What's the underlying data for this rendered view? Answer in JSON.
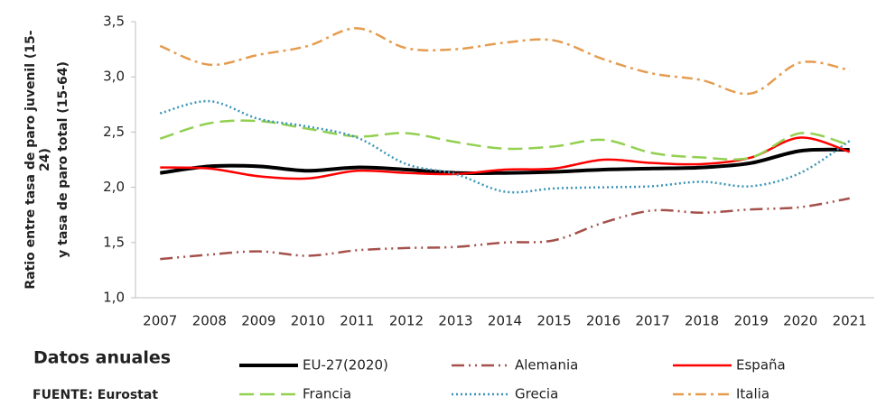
{
  "chart_data": {
    "type": "line",
    "y_label": [
      "Ratio entre tasa de paro juvenil (15-",
      "24)",
      "y tasa de paro total (15-64)"
    ],
    "notes": [
      "Datos anuales",
      "FUENTE: Eurostat"
    ],
    "categories": [
      "2007",
      "2008",
      "2009",
      "2010",
      "2011",
      "2012",
      "2013",
      "2014",
      "2015",
      "2016",
      "2017",
      "2018",
      "2019",
      "2020",
      "2021"
    ],
    "ylim": [
      1.0,
      3.5
    ],
    "yticks": [
      {
        "value": 1.0,
        "label": "1,0"
      },
      {
        "value": 1.5,
        "label": "1,5"
      },
      {
        "value": 2.0,
        "label": "2,0"
      },
      {
        "value": 2.5,
        "label": "2,5"
      },
      {
        "value": 3.0,
        "label": "3,0"
      },
      {
        "value": 3.5,
        "label": "3,5"
      }
    ],
    "grid": false,
    "series": [
      {
        "name": "EU-27(2020)",
        "color": "#000000",
        "style": "solid-thick",
        "values": [
          2.13,
          2.19,
          2.19,
          2.15,
          2.18,
          2.16,
          2.13,
          2.13,
          2.14,
          2.16,
          2.17,
          2.18,
          2.22,
          2.33,
          2.34
        ]
      },
      {
        "name": "Alemania",
        "color": "#a5504a",
        "style": "dash-dot-dot",
        "values": [
          1.35,
          1.39,
          1.42,
          1.38,
          1.43,
          1.45,
          1.46,
          1.5,
          1.52,
          1.68,
          1.79,
          1.77,
          1.8,
          1.82,
          1.9
        ]
      },
      {
        "name": "España",
        "color": "#ff0000",
        "style": "solid",
        "values": [
          2.18,
          2.17,
          2.1,
          2.08,
          2.15,
          2.13,
          2.12,
          2.16,
          2.17,
          2.25,
          2.22,
          2.21,
          2.27,
          2.45,
          2.32
        ]
      },
      {
        "name": "Francia",
        "color": "#92d050",
        "style": "long-dash",
        "values": [
          2.44,
          2.58,
          2.6,
          2.53,
          2.46,
          2.49,
          2.41,
          2.35,
          2.37,
          2.43,
          2.31,
          2.27,
          2.27,
          2.49,
          2.38
        ]
      },
      {
        "name": "Grecia",
        "color": "#3a95b8",
        "style": "dotted",
        "values": [
          2.67,
          2.78,
          2.62,
          2.55,
          2.45,
          2.21,
          2.12,
          1.96,
          1.99,
          2.0,
          2.01,
          2.05,
          2.01,
          2.13,
          2.42
        ]
      },
      {
        "name": "Italia",
        "color": "#e59c4f",
        "style": "dash-dot",
        "values": [
          3.28,
          3.11,
          3.2,
          3.28,
          3.44,
          3.26,
          3.25,
          3.31,
          3.33,
          3.16,
          3.03,
          2.97,
          2.85,
          3.13,
          3.06
        ]
      }
    ]
  }
}
